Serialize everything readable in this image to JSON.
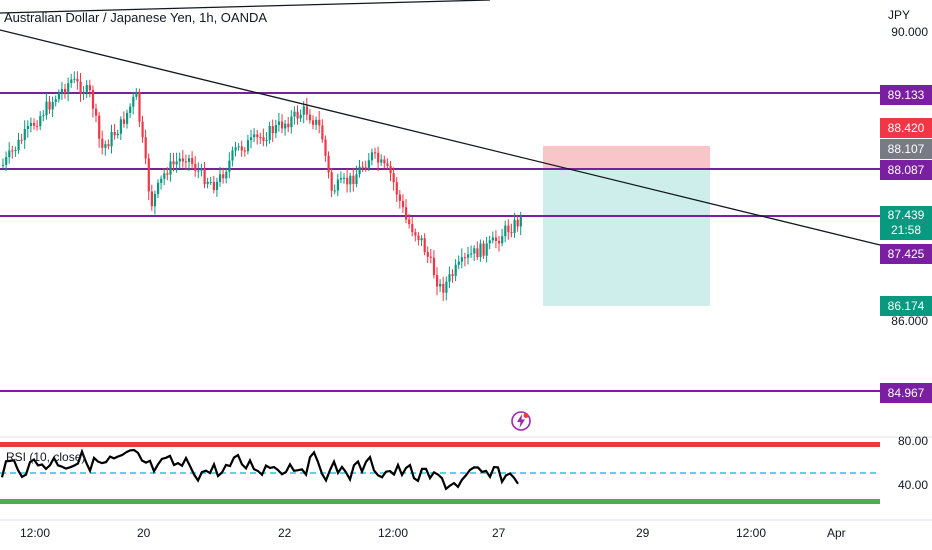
{
  "header": {
    "symbol_title": "Australian Dollar / Japanese Yen, 1h, OANDA",
    "currency": "JPY"
  },
  "price_axis": {
    "ticks": [
      "90.000",
      "86.000"
    ]
  },
  "levels": [
    {
      "label": "89.133",
      "color": "#7b1fa2"
    },
    {
      "label": "88.087",
      "color": "#7b1fa2"
    },
    {
      "label": "87.425",
      "color": "#7b1fa2"
    },
    {
      "label": "84.967",
      "color": "#7b1fa2"
    }
  ],
  "position_labels": {
    "stop": {
      "label": "88.420",
      "color": "#f23645"
    },
    "entry": {
      "label": "88.107",
      "color": "#787b86"
    },
    "target": {
      "label": "86.174",
      "color": "#089981"
    }
  },
  "current_price": {
    "label": "87.439",
    "countdown": "21:58",
    "color": "#089981"
  },
  "rsi": {
    "title": "RSI (10, close)",
    "ticks": [
      "80.00",
      "40.00"
    ],
    "overbought_color": "#f23645",
    "oversold_color": "#4caf50",
    "mid_color": "#26c6da"
  },
  "time_axis": {
    "labels": [
      "12:00",
      "20",
      "22",
      "12:00",
      "27",
      "29",
      "12:00",
      "Apr"
    ]
  },
  "colors": {
    "up": "#089981",
    "down": "#f23645",
    "trend_line": "#131722"
  }
}
